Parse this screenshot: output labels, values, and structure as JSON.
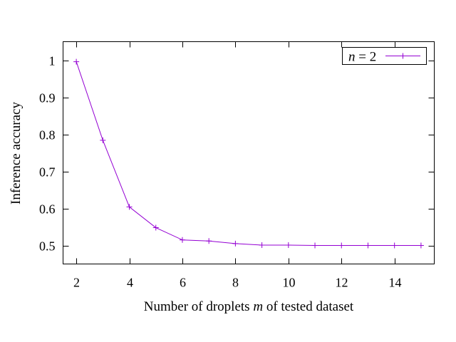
{
  "chart_data": {
    "type": "line",
    "xlabel_parts": [
      "Number of droplets ",
      "m",
      " of tested dataset"
    ],
    "ylabel": "Inference accuracy",
    "xlim": [
      1.5,
      15.5
    ],
    "ylim": [
      0.45,
      1.05
    ],
    "xticks": [
      2,
      4,
      6,
      8,
      10,
      12,
      14
    ],
    "yticks": [
      0.5,
      0.6,
      0.7,
      0.8,
      0.9,
      1
    ],
    "ytick_labels": [
      "0.5",
      "0.6",
      "0.7",
      "0.8",
      "0.9",
      "1"
    ],
    "grid": false,
    "legend_position": "top-right",
    "series": [
      {
        "name_parts": [
          "n",
          " = 2"
        ],
        "color": "#9400d3",
        "marker": "plus",
        "x": [
          2,
          3,
          4,
          5,
          6,
          7,
          8,
          9,
          10,
          11,
          12,
          13,
          14,
          15
        ],
        "y": [
          0.996,
          0.784,
          0.604,
          0.548,
          0.515,
          0.512,
          0.505,
          0.501,
          0.501,
          0.5,
          0.5,
          0.5,
          0.5,
          0.5
        ]
      }
    ]
  }
}
